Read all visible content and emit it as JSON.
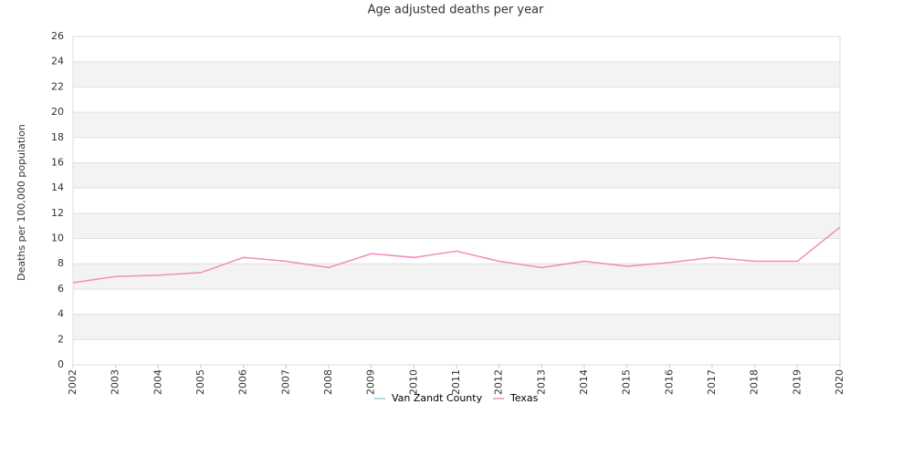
{
  "chart_data": {
    "type": "line",
    "title": "Age adjusted deaths per year",
    "y_label": "Deaths per 100,000 population",
    "x": [
      2002,
      2003,
      2004,
      2005,
      2006,
      2007,
      2008,
      2009,
      2010,
      2011,
      2012,
      2013,
      2014,
      2015,
      2016,
      2017,
      2018,
      2019,
      2020
    ],
    "xlim": [
      2002,
      2020
    ],
    "xticks": [
      2002,
      2003,
      2004,
      2005,
      2006,
      2007,
      2008,
      2009,
      2010,
      2011,
      2012,
      2013,
      2014,
      2015,
      2016,
      2017,
      2018,
      2019,
      2020
    ],
    "ylim": [
      0,
      26
    ],
    "yticks": [
      0,
      2,
      4,
      6,
      8,
      10,
      12,
      14,
      16,
      18,
      20,
      22,
      24,
      26
    ],
    "grid": true,
    "legend": "bottom",
    "series": [
      {
        "name": "Van Zandt County",
        "color": "#9ecae1",
        "values": [
          null,
          null,
          null,
          null,
          null,
          null,
          null,
          null,
          null,
          null,
          null,
          null,
          null,
          null,
          null,
          null,
          null,
          null,
          null
        ]
      },
      {
        "name": "Texas",
        "color": "#f08cc0",
        "values": [
          6.5,
          7.0,
          7.1,
          7.3,
          8.5,
          8.2,
          7.7,
          8.8,
          8.5,
          9.0,
          8.2,
          7.7,
          8.2,
          7.8,
          8.1,
          8.5,
          8.2,
          8.2,
          10.9
        ]
      }
    ]
  }
}
